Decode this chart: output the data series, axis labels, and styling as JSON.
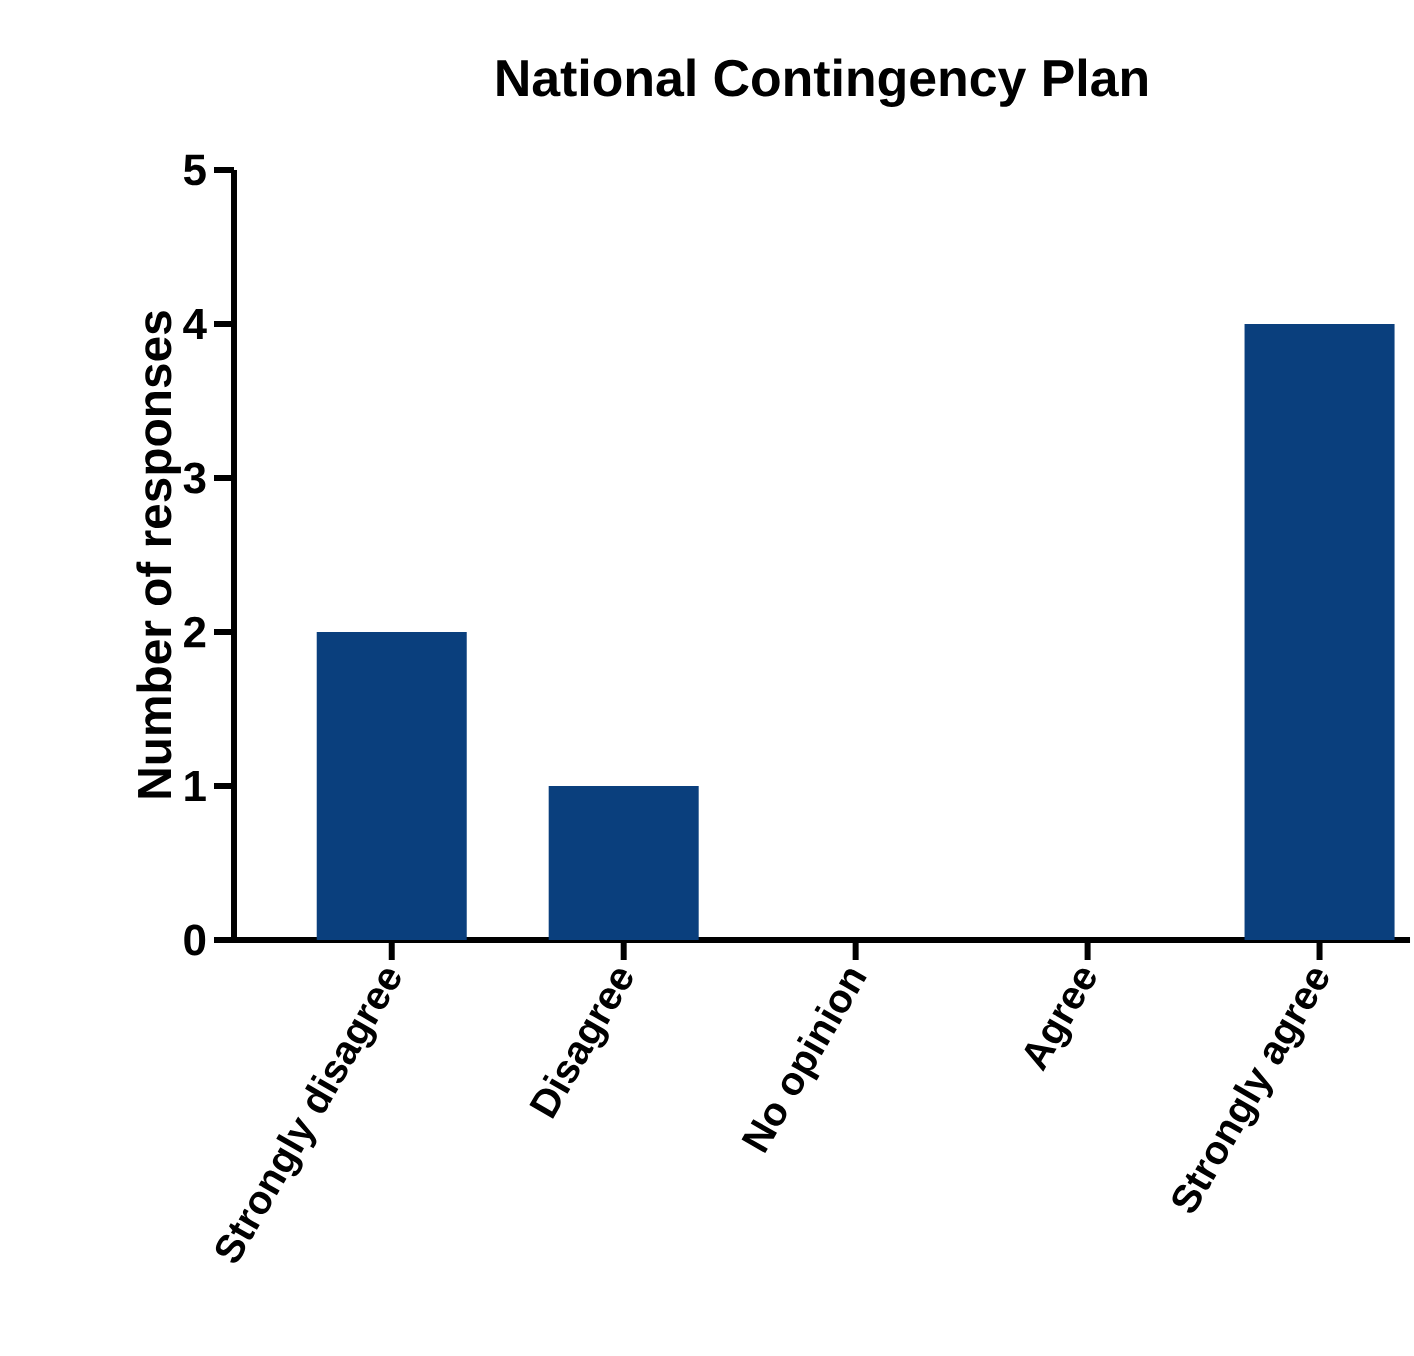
{
  "chart_data": {
    "type": "bar",
    "title": "National Contingency Plan",
    "ylabel": "Number of responses",
    "categories": [
      "Strongly disagree",
      "Disagree",
      "No opinion",
      "Agree",
      "Strongly agree"
    ],
    "values": [
      2,
      1,
      0,
      0,
      4
    ],
    "color": "#0a3f7d",
    "ylim": [
      0,
      5
    ],
    "yticks": [
      0,
      1,
      2,
      3,
      4,
      5
    ],
    "grid": false
  }
}
